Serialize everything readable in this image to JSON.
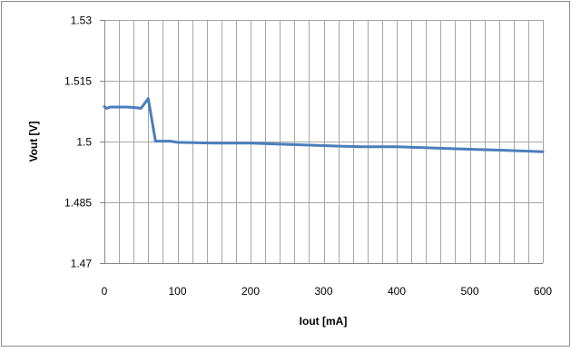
{
  "chart_data": {
    "type": "line",
    "xlabel": "Iout [mA]",
    "ylabel": "Vout [V]",
    "xlim": [
      0,
      600
    ],
    "ylim": [
      1.47,
      1.53
    ],
    "x_ticks": [
      0,
      100,
      200,
      300,
      400,
      500,
      600
    ],
    "x_tick_labels": [
      "0",
      "100",
      "200",
      "300",
      "400",
      "500",
      "600"
    ],
    "y_ticks": [
      1.47,
      1.485,
      1.5,
      1.515,
      1.53
    ],
    "y_tick_labels": [
      "1.47",
      "1.485",
      "1.5",
      "1.515",
      "1.53"
    ],
    "x_minor_step": 20,
    "grid": true,
    "legend": "none",
    "series": [
      {
        "color": "#4a7ebb",
        "x": [
          0,
          3,
          8,
          20,
          30,
          40,
          50,
          60,
          70,
          80,
          90,
          100,
          150,
          200,
          250,
          300,
          350,
          400,
          450,
          500,
          550,
          600
        ],
        "y": [
          1.5086,
          1.5082,
          1.5085,
          1.5085,
          1.5085,
          1.5084,
          1.5082,
          1.5106,
          1.5001,
          1.5001,
          1.5001,
          1.4998,
          1.4996,
          1.4996,
          1.4993,
          1.499,
          1.4987,
          1.4987,
          1.4984,
          1.4981,
          1.4978,
          1.4975
        ]
      }
    ]
  }
}
